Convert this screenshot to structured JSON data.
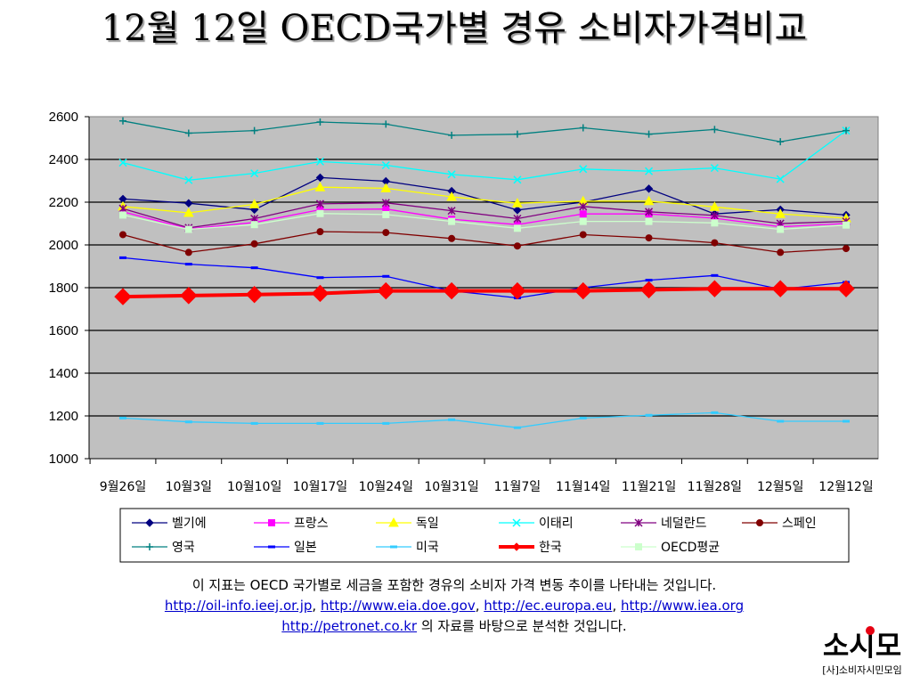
{
  "page": {
    "title": "12월 12일 OECD국가별 경유 소비자가격비교"
  },
  "note": {
    "line1": "이 지표는 OECD 국가별로 세금을 포함한 경유의 소비자 가격 변동 추이를 나타내는 것입니다.",
    "link1": "http://oil-info.ieej.or.jp",
    "link2": "http://www.eia.doe.gov",
    "link3": "http://ec.europa.eu",
    "link4": "http://www.iea.org",
    "link5": "http://petronet.co.kr",
    "sep": ", ",
    "tail": " 의 자료를 바탕으로 분석한 것입니다."
  },
  "logo": {
    "mark": "소시모",
    "caption": "[사]소비자시민모임"
  },
  "chart_data": {
    "type": "line",
    "categories": [
      "9월26일",
      "10월3일",
      "10월10일",
      "10월17일",
      "10월24일",
      "10월31일",
      "11월7일",
      "11월14일",
      "11월21일",
      "11월28일",
      "12월5일",
      "12월12일"
    ],
    "ylim": [
      1000,
      2600
    ],
    "yticks": [
      1000,
      1200,
      1400,
      1600,
      1800,
      2000,
      2200,
      2400,
      2600
    ],
    "grid": true,
    "legend_position": "bottom",
    "plot_background": "#c0c0c0",
    "series": [
      {
        "name": "벨기에",
        "color": "#000080",
        "marker": "diamond",
        "values": [
          2215,
          2195,
          2165,
          2315,
          2298,
          2252,
          2163,
          2200,
          2263,
          2145,
          2165,
          2140
        ]
      },
      {
        "name": "프랑스",
        "color": "#ff00ff",
        "marker": "square",
        "values": [
          2155,
          2075,
          2105,
          2165,
          2168,
          2120,
          2095,
          2145,
          2145,
          2125,
          2085,
          2100
        ]
      },
      {
        "name": "독일",
        "color": "#ffff00",
        "marker": "triangle",
        "values": [
          2180,
          2150,
          2190,
          2270,
          2265,
          2225,
          2195,
          2205,
          2205,
          2178,
          2145,
          2125
        ]
      },
      {
        "name": "이태리",
        "color": "#00ffff",
        "marker": "x",
        "values": [
          2385,
          2303,
          2335,
          2390,
          2373,
          2330,
          2305,
          2355,
          2345,
          2360,
          2308,
          2535
        ]
      },
      {
        "name": "네덜란드",
        "color": "#800080",
        "marker": "star",
        "values": [
          2170,
          2080,
          2123,
          2192,
          2197,
          2160,
          2123,
          2180,
          2155,
          2138,
          2100,
          2110
        ]
      },
      {
        "name": "스페인",
        "color": "#800000",
        "marker": "circle",
        "values": [
          2048,
          1965,
          2005,
          2062,
          2058,
          2030,
          1995,
          2048,
          2033,
          2010,
          1965,
          1983
        ]
      },
      {
        "name": "영국",
        "color": "#008080",
        "marker": "plus",
        "values": [
          2580,
          2523,
          2535,
          2575,
          2565,
          2513,
          2518,
          2548,
          2518,
          2540,
          2483,
          2535
        ]
      },
      {
        "name": "일본",
        "color": "#0000ff",
        "marker": "dash",
        "values": [
          1940,
          1910,
          1893,
          1847,
          1853,
          1785,
          1752,
          1800,
          1835,
          1857,
          1793,
          1825
        ]
      },
      {
        "name": "미국",
        "color": "#33ccff",
        "marker": "dash",
        "values": [
          1190,
          1172,
          1165,
          1165,
          1165,
          1182,
          1145,
          1190,
          1203,
          1215,
          1175,
          1175
        ]
      },
      {
        "name": "한국",
        "color": "#ff0000",
        "marker": "diamond",
        "bold": true,
        "values": [
          1758,
          1763,
          1768,
          1773,
          1785,
          1785,
          1785,
          1785,
          1790,
          1795,
          1795,
          1795
        ]
      },
      {
        "name": "OECD평균",
        "color": "#ccffcc",
        "marker": "square",
        "values": [
          2140,
          2073,
          2095,
          2147,
          2142,
          2110,
          2078,
          2110,
          2110,
          2103,
          2073,
          2093
        ]
      }
    ]
  }
}
